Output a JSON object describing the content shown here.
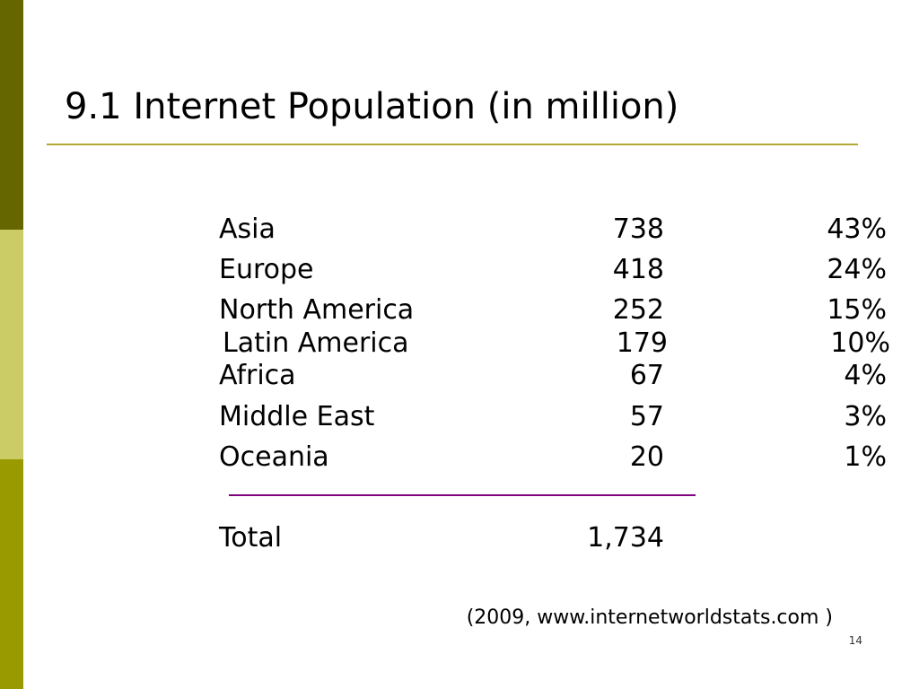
{
  "slide": {
    "title": "9.1 Internet Population (in million)",
    "rows": [
      {
        "region": "Asia",
        "users": "738",
        "share": "43%"
      },
      {
        "region": "Europe",
        "users": "418",
        "share": "24%"
      },
      {
        "region": "North America",
        "users": "252",
        "share": "15%"
      },
      {
        "region": "Latin America",
        "users": "179",
        "share": "10%"
      },
      {
        "region": "Africa",
        "users": "67",
        "share": "4%"
      },
      {
        "region": "Middle East",
        "users": "57",
        "share": "3%"
      },
      {
        "region": "Oceania",
        "users": "20",
        "share": "1%"
      }
    ],
    "total": {
      "label": "Total",
      "users": "1,734"
    },
    "source": "(2009, www.internetworldstats.com )",
    "page_number": "14"
  },
  "colors": {
    "sidebar_top": "#666600",
    "sidebar_middle": "#cccc66",
    "sidebar_bottom": "#999900",
    "title_rule": "#b3a733",
    "sum_rule": "#800080"
  }
}
